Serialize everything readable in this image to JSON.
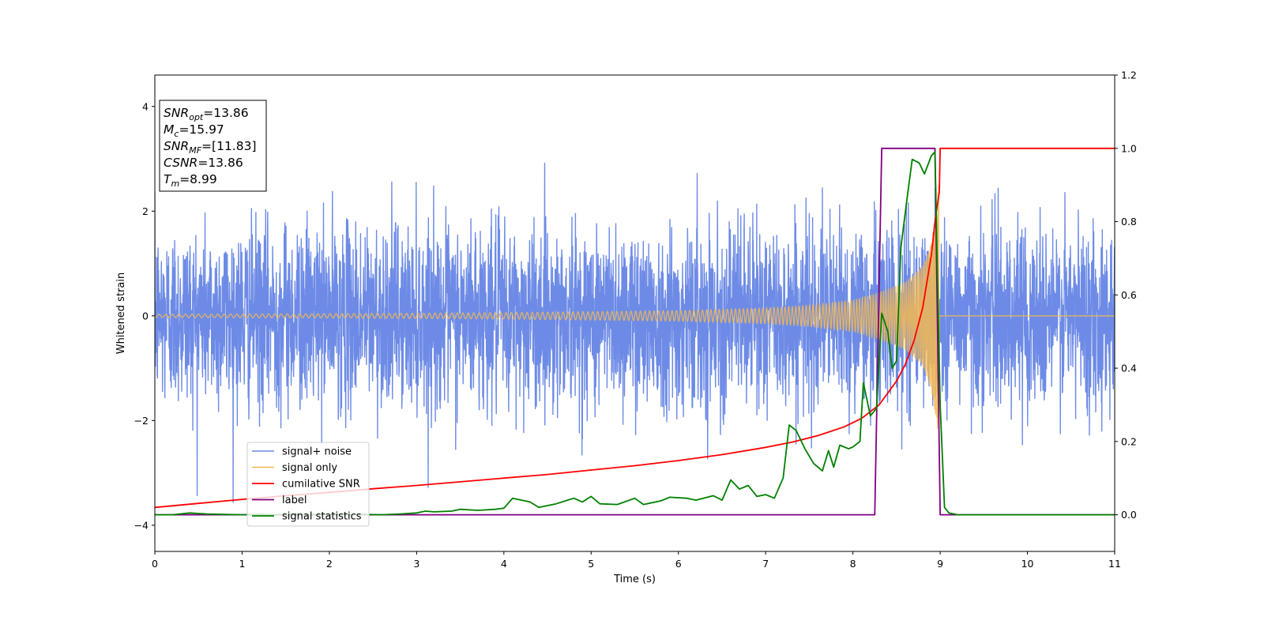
{
  "chart_data": {
    "type": "line",
    "title": "",
    "xlabel": "Time (s)",
    "ylabel": "Whitened strain",
    "y2label": "",
    "xlim": [
      0,
      11
    ],
    "ylim": [
      -4.5,
      4.6
    ],
    "y2lim": [
      -0.1,
      1.2
    ],
    "x_ticks": [
      "0",
      "1",
      "2",
      "3",
      "4",
      "5",
      "6",
      "7",
      "8",
      "9",
      "10",
      "11"
    ],
    "y_ticks": [
      "−4",
      "−2",
      "0",
      "2",
      "4"
    ],
    "y2_ticks": [
      "0.0",
      "0.2",
      "0.4",
      "0.6",
      "0.8",
      "1.0",
      "1.2"
    ],
    "grid": false,
    "legend_position": "lower-left",
    "annotation": {
      "lines": [
        {
          "base": "SNR",
          "sub": "opt",
          "rest": "=13.86"
        },
        {
          "base": "M",
          "sub": "c",
          "rest": "=15.97"
        },
        {
          "base": "SNR",
          "sub": "MF",
          "rest": "=[11.83]"
        },
        {
          "base": "CSNR",
          "sub": "",
          "rest": "=13.86"
        },
        {
          "base": "T",
          "sub": "m",
          "rest": "=8.99"
        }
      ]
    },
    "series": [
      {
        "name": "signal+ noise",
        "axis": "left",
        "color": "#6d8be6",
        "style": "noise",
        "noise_std": 0.85,
        "x_range": [
          0,
          11
        ]
      },
      {
        "name": "signal only",
        "axis": "left",
        "color": "#f5b850",
        "style": "chirp",
        "merger_time": 8.99,
        "amplitude_points": [
          [
            0,
            0.03
          ],
          [
            2,
            0.04
          ],
          [
            4,
            0.06
          ],
          [
            6,
            0.1
          ],
          [
            7,
            0.15
          ],
          [
            7.5,
            0.2
          ],
          [
            8,
            0.3
          ],
          [
            8.3,
            0.45
          ],
          [
            8.6,
            0.65
          ],
          [
            8.8,
            0.95
          ],
          [
            8.9,
            1.4
          ],
          [
            8.97,
            2.3
          ],
          [
            8.99,
            2.6
          ]
        ]
      },
      {
        "name": "cumilative SNR",
        "axis": "right",
        "color": "#ff0000",
        "style": "line",
        "points": [
          [
            0,
            0.02
          ],
          [
            0.5,
            0.031
          ],
          [
            1,
            0.042
          ],
          [
            1.5,
            0.052
          ],
          [
            2,
            0.061
          ],
          [
            2.5,
            0.071
          ],
          [
            3,
            0.08
          ],
          [
            3.5,
            0.09
          ],
          [
            4,
            0.1
          ],
          [
            4.5,
            0.11
          ],
          [
            5,
            0.122
          ],
          [
            5.5,
            0.134
          ],
          [
            6,
            0.148
          ],
          [
            6.5,
            0.164
          ],
          [
            7,
            0.184
          ],
          [
            7.3,
            0.198
          ],
          [
            7.6,
            0.216
          ],
          [
            7.9,
            0.24
          ],
          [
            8.1,
            0.263
          ],
          [
            8.3,
            0.3
          ],
          [
            8.5,
            0.365
          ],
          [
            8.6,
            0.41
          ],
          [
            8.7,
            0.475
          ],
          [
            8.8,
            0.565
          ],
          [
            8.9,
            0.71
          ],
          [
            8.95,
            0.82
          ],
          [
            8.99,
            0.88
          ],
          [
            9.0,
            1.0
          ],
          [
            11,
            1.0
          ]
        ]
      },
      {
        "name": "label",
        "axis": "right",
        "color": "#800080",
        "style": "line",
        "points": [
          [
            0,
            0.0
          ],
          [
            8.25,
            0.0
          ],
          [
            8.33,
            1.0
          ],
          [
            8.94,
            1.0
          ],
          [
            9.0,
            0.0
          ],
          [
            11,
            0.0
          ]
        ]
      },
      {
        "name": "signal statistics",
        "axis": "right",
        "color": "#008000",
        "style": "line",
        "points": [
          [
            0,
            0.0
          ],
          [
            0.2,
            0.0
          ],
          [
            0.4,
            0.005
          ],
          [
            0.6,
            0.002
          ],
          [
            0.8,
            0.001
          ],
          [
            1.0,
            0.0
          ],
          [
            1.2,
            0.001
          ],
          [
            1.4,
            0.0
          ],
          [
            1.6,
            0.002
          ],
          [
            1.8,
            0.0
          ],
          [
            2.0,
            0.001
          ],
          [
            2.2,
            0.0
          ],
          [
            2.4,
            0.001
          ],
          [
            2.6,
            0.0
          ],
          [
            2.8,
            0.002
          ],
          [
            3.0,
            0.005
          ],
          [
            3.1,
            0.01
          ],
          [
            3.2,
            0.008
          ],
          [
            3.4,
            0.01
          ],
          [
            3.5,
            0.015
          ],
          [
            3.7,
            0.012
          ],
          [
            3.9,
            0.015
          ],
          [
            4.0,
            0.018
          ],
          [
            4.1,
            0.045
          ],
          [
            4.3,
            0.035
          ],
          [
            4.4,
            0.02
          ],
          [
            4.6,
            0.03
          ],
          [
            4.8,
            0.045
          ],
          [
            4.9,
            0.035
          ],
          [
            5.0,
            0.05
          ],
          [
            5.1,
            0.03
          ],
          [
            5.3,
            0.028
          ],
          [
            5.5,
            0.045
          ],
          [
            5.6,
            0.028
          ],
          [
            5.8,
            0.038
          ],
          [
            5.9,
            0.048
          ],
          [
            6.1,
            0.045
          ],
          [
            6.2,
            0.04
          ],
          [
            6.4,
            0.052
          ],
          [
            6.5,
            0.04
          ],
          [
            6.6,
            0.095
          ],
          [
            6.7,
            0.07
          ],
          [
            6.8,
            0.08
          ],
          [
            6.9,
            0.05
          ],
          [
            7.0,
            0.055
          ],
          [
            7.1,
            0.045
          ],
          [
            7.2,
            0.1
          ],
          [
            7.27,
            0.245
          ],
          [
            7.35,
            0.23
          ],
          [
            7.45,
            0.18
          ],
          [
            7.55,
            0.14
          ],
          [
            7.65,
            0.12
          ],
          [
            7.72,
            0.175
          ],
          [
            7.78,
            0.13
          ],
          [
            7.85,
            0.19
          ],
          [
            7.95,
            0.18
          ],
          [
            8.0,
            0.185
          ],
          [
            8.08,
            0.2
          ],
          [
            8.12,
            0.36
          ],
          [
            8.2,
            0.27
          ],
          [
            8.27,
            0.29
          ],
          [
            8.33,
            0.55
          ],
          [
            8.4,
            0.5
          ],
          [
            8.45,
            0.4
          ],
          [
            8.5,
            0.42
          ],
          [
            8.55,
            0.73
          ],
          [
            8.63,
            0.88
          ],
          [
            8.68,
            0.97
          ],
          [
            8.76,
            0.96
          ],
          [
            8.82,
            0.93
          ],
          [
            8.9,
            0.98
          ],
          [
            8.94,
            0.99
          ],
          [
            9.0,
            0.3
          ],
          [
            9.05,
            0.02
          ],
          [
            9.1,
            0.005
          ],
          [
            9.2,
            0.0
          ],
          [
            11,
            0.0
          ]
        ]
      }
    ]
  }
}
